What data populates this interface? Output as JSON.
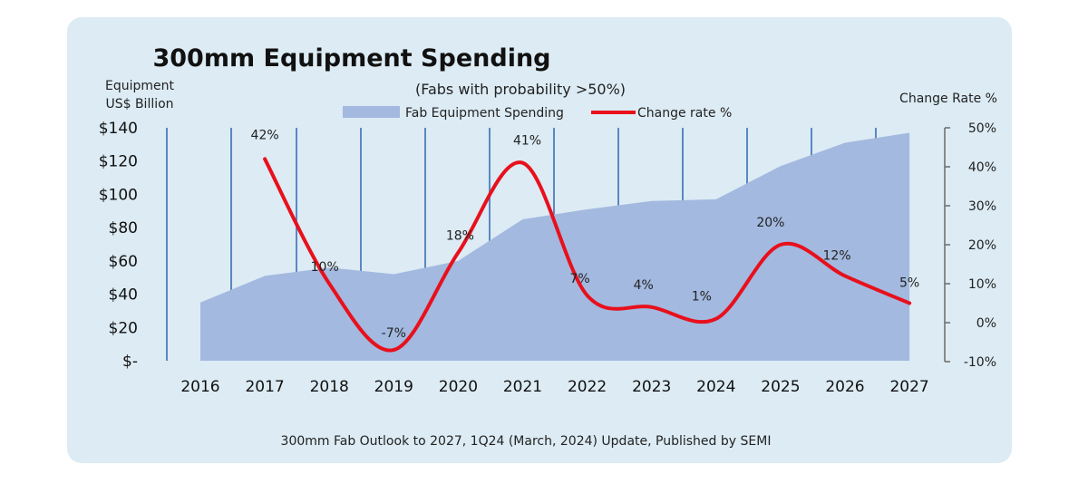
{
  "chart_data": {
    "type": "area+line",
    "title": "300mm Equipment Spending",
    "subtitle": "(Fabs with probability >50%)",
    "y_left_label_line1": "Equipment",
    "y_left_label_line2": "US$ Billion",
    "y_right_label": "Change Rate %",
    "categories": [
      "2016",
      "2017",
      "2018",
      "2019",
      "2020",
      "2021",
      "2022",
      "2023",
      "2024",
      "2025",
      "2026",
      "2027"
    ],
    "series": [
      {
        "name": "Fab Equipment Spending",
        "type": "area",
        "axis": "left",
        "color": "#a3b9df",
        "values": [
          35,
          51,
          56,
          52,
          60,
          85,
          91,
          96,
          97,
          117,
          131,
          137
        ]
      },
      {
        "name": "Change rate %",
        "type": "line",
        "axis": "right",
        "color": "#e8101c",
        "values": [
          null,
          42,
          10,
          -7,
          18,
          41,
          7,
          4,
          1,
          20,
          12,
          5
        ],
        "labels": [
          "",
          "42%",
          "10%",
          "-7%",
          "18%",
          "41%",
          "7%",
          "4%",
          "1%",
          "20%",
          "12%",
          "5%"
        ]
      }
    ],
    "y_left": {
      "range": [
        0,
        140
      ],
      "ticks": [
        0,
        20,
        40,
        60,
        80,
        100,
        120,
        140
      ],
      "tick_labels": [
        "$-",
        "$20",
        "$40",
        "$60",
        "$80",
        "$100",
        "$120",
        "$140"
      ]
    },
    "y_right": {
      "range": [
        -10,
        50
      ],
      "ticks": [
        -10,
        0,
        10,
        20,
        30,
        40,
        50
      ],
      "tick_labels": [
        "-10%",
        "0%",
        "10%",
        "20%",
        "30%",
        "40%",
        "50%"
      ]
    },
    "gridlines": "vertical",
    "grid_color": "#5b87c2",
    "legend": "top-center",
    "source": "300mm Fab Outlook to 2027, 1Q24 (March, 2024) Update,  Published by SEMI"
  }
}
